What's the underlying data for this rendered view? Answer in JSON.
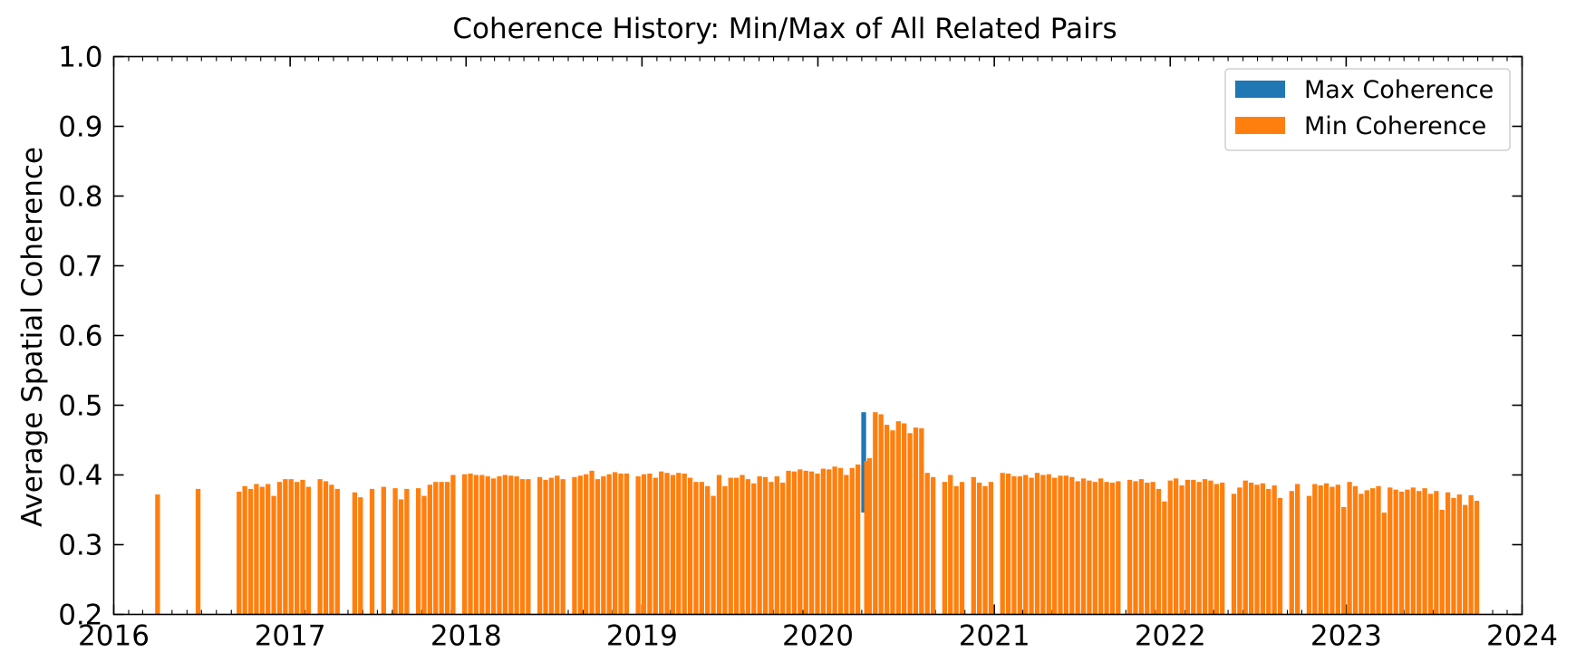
{
  "chart_data": {
    "type": "bar",
    "title": "Coherence History: Min/Max of All Related Pairs",
    "xlabel": "",
    "ylabel": "Average Spatial Coherence",
    "xlim": [
      "2016-01-01",
      "2024-01-01"
    ],
    "ylim": [
      0.2,
      1.0
    ],
    "x_ticks": [
      "2016",
      "2017",
      "2018",
      "2019",
      "2020",
      "2021",
      "2022",
      "2023",
      "2024"
    ],
    "y_ticks": [
      "0.2",
      "0.3",
      "0.4",
      "0.5",
      "0.6",
      "0.7",
      "0.8",
      "0.9",
      "1.0"
    ],
    "grid": false,
    "legend_position": "top-right",
    "colors": {
      "max": "#1f77b4",
      "min": "#ff7f0e"
    },
    "series": [
      {
        "name": "Max Coherence",
        "color": "#1f77b4"
      },
      {
        "name": "Min Coherence",
        "color": "#ff7f0e"
      }
    ],
    "x": [
      "2016-04-01",
      "2016-06-24",
      "2016-09-17",
      "2016-09-29",
      "2016-10-11",
      "2016-10-23",
      "2016-11-04",
      "2016-11-16",
      "2016-11-28",
      "2016-12-10",
      "2016-12-22",
      "2017-01-03",
      "2017-01-15",
      "2017-01-27",
      "2017-02-08",
      "2017-03-04",
      "2017-03-16",
      "2017-03-28",
      "2017-04-09",
      "2017-05-15",
      "2017-05-27",
      "2017-06-20",
      "2017-07-14",
      "2017-08-07",
      "2017-08-19",
      "2017-08-31",
      "2017-09-24",
      "2017-10-06",
      "2017-10-18",
      "2017-10-30",
      "2017-11-11",
      "2017-11-23",
      "2017-12-05",
      "2017-12-29",
      "2018-01-10",
      "2018-01-22",
      "2018-02-03",
      "2018-02-15",
      "2018-02-27",
      "2018-03-11",
      "2018-03-23",
      "2018-04-04",
      "2018-04-16",
      "2018-04-28",
      "2018-05-10",
      "2018-06-03",
      "2018-06-15",
      "2018-06-27",
      "2018-07-09",
      "2018-07-21",
      "2018-08-14",
      "2018-08-26",
      "2018-09-07",
      "2018-09-19",
      "2018-10-01",
      "2018-10-13",
      "2018-10-25",
      "2018-11-06",
      "2018-11-18",
      "2018-11-30",
      "2018-12-24",
      "2019-01-05",
      "2019-01-17",
      "2019-01-29",
      "2019-02-10",
      "2019-02-22",
      "2019-03-06",
      "2019-03-18",
      "2019-03-30",
      "2019-04-11",
      "2019-04-23",
      "2019-05-05",
      "2019-05-17",
      "2019-05-29",
      "2019-06-10",
      "2019-06-22",
      "2019-07-04",
      "2019-07-16",
      "2019-07-28",
      "2019-08-09",
      "2019-08-21",
      "2019-09-02",
      "2019-09-14",
      "2019-09-26",
      "2019-10-08",
      "2019-10-20",
      "2019-11-01",
      "2019-11-13",
      "2019-11-25",
      "2019-12-07",
      "2019-12-19",
      "2019-12-31",
      "2020-01-12",
      "2020-01-24",
      "2020-02-05",
      "2020-02-17",
      "2020-02-29",
      "2020-03-12",
      "2020-03-24",
      "2020-04-05",
      "2020-04-17",
      "2020-04-29",
      "2020-05-11",
      "2020-05-23",
      "2020-06-04",
      "2020-06-16",
      "2020-06-28",
      "2020-07-10",
      "2020-07-22",
      "2020-08-03",
      "2020-08-15",
      "2020-08-27",
      "2020-09-20",
      "2020-10-02",
      "2020-10-14",
      "2020-10-26",
      "2020-11-19",
      "2020-12-01",
      "2020-12-13",
      "2020-12-25",
      "2021-01-18",
      "2021-01-30",
      "2021-02-11",
      "2021-02-23",
      "2021-03-07",
      "2021-03-19",
      "2021-03-31",
      "2021-04-12",
      "2021-04-24",
      "2021-05-06",
      "2021-05-18",
      "2021-05-30",
      "2021-06-11",
      "2021-06-23",
      "2021-07-05",
      "2021-07-17",
      "2021-07-29",
      "2021-08-10",
      "2021-08-22",
      "2021-09-03",
      "2021-09-15",
      "2021-10-09",
      "2021-10-21",
      "2021-11-02",
      "2021-11-14",
      "2021-11-26",
      "2021-12-08",
      "2021-12-20",
      "2022-01-01",
      "2022-01-13",
      "2022-01-25",
      "2022-02-06",
      "2022-02-18",
      "2022-03-02",
      "2022-03-14",
      "2022-03-26",
      "2022-04-07",
      "2022-04-19",
      "2022-05-13",
      "2022-05-25",
      "2022-06-06",
      "2022-06-18",
      "2022-06-30",
      "2022-07-12",
      "2022-07-24",
      "2022-08-05",
      "2022-08-17",
      "2022-09-10",
      "2022-09-22",
      "2022-10-16",
      "2022-10-28",
      "2022-11-09",
      "2022-11-21",
      "2022-12-03",
      "2022-12-15",
      "2022-12-27",
      "2023-01-08",
      "2023-01-20",
      "2023-02-01",
      "2023-02-13",
      "2023-02-25",
      "2023-03-09",
      "2023-03-21",
      "2023-04-02",
      "2023-04-14",
      "2023-04-26",
      "2023-05-08",
      "2023-05-20",
      "2023-06-01",
      "2023-06-13",
      "2023-06-25",
      "2023-07-07",
      "2023-07-19",
      "2023-07-31",
      "2023-08-12",
      "2023-08-24",
      "2023-09-05",
      "2023-09-17",
      "2023-09-29",
      "2023-10-11",
      "2023-10-23",
      "2023-11-04"
    ],
    "min_values": [
      0.372,
      0.38,
      0.376,
      0.384,
      0.38,
      0.387,
      0.383,
      0.387,
      0.37,
      0.39,
      0.394,
      0.394,
      0.39,
      0.393,
      0.383,
      0.394,
      0.391,
      0.386,
      0.38,
      0.375,
      0.368,
      0.38,
      0.383,
      0.381,
      0.365,
      0.38,
      0.381,
      0.37,
      0.386,
      0.39,
      0.39,
      0.39,
      0.4,
      0.401,
      0.402,
      0.4,
      0.4,
      0.398,
      0.395,
      0.398,
      0.4,
      0.399,
      0.398,
      0.394,
      0.394,
      0.397,
      0.393,
      0.396,
      0.399,
      0.394,
      0.397,
      0.399,
      0.401,
      0.406,
      0.394,
      0.398,
      0.401,
      0.404,
      0.402,
      0.402,
      0.398,
      0.401,
      0.402,
      0.396,
      0.405,
      0.403,
      0.4,
      0.403,
      0.402,
      0.396,
      0.39,
      0.39,
      0.384,
      0.37,
      0.4,
      0.384,
      0.396,
      0.396,
      0.4,
      0.394,
      0.388,
      0.398,
      0.397,
      0.39,
      0.398,
      0.389,
      0.406,
      0.405,
      0.408,
      0.406,
      0.405,
      0.402,
      0.409,
      0.408,
      0.412,
      0.41,
      0.4,
      0.41,
      0.415,
      0.42,
      0.424,
      0.49,
      0.487,
      0.472,
      0.464,
      0.477,
      0.474,
      0.46,
      0.468,
      0.467,
      0.403,
      0.397,
      0.39,
      0.4,
      0.384,
      0.39,
      0.397,
      0.389,
      0.384,
      0.39,
      0.403,
      0.402,
      0.398,
      0.398,
      0.4,
      0.396,
      0.403,
      0.4,
      0.401,
      0.396,
      0.399,
      0.399,
      0.397,
      0.391,
      0.395,
      0.392,
      0.39,
      0.395,
      0.39,
      0.389,
      0.391,
      0.393,
      0.391,
      0.394,
      0.389,
      0.39,
      0.38,
      0.362,
      0.392,
      0.395,
      0.385,
      0.393,
      0.393,
      0.39,
      0.394,
      0.392,
      0.387,
      0.389,
      0.373,
      0.382,
      0.392,
      0.389,
      0.386,
      0.388,
      0.38,
      0.385,
      0.367,
      0.377,
      0.387,
      0.37,
      0.387,
      0.385,
      0.388,
      0.383,
      0.386,
      0.354,
      0.39,
      0.384,
      0.373,
      0.378,
      0.381,
      0.384,
      0.346,
      0.382,
      0.379,
      0.376,
      0.379,
      0.382,
      0.377,
      0.381,
      0.373,
      0.377,
      0.35,
      0.375,
      0.367,
      0.372,
      0.357,
      0.371,
      0.363
    ],
    "max_values": [
      {
        "x": "2020-04-05",
        "low": 0.346,
        "high": 0.49
      }
    ]
  }
}
